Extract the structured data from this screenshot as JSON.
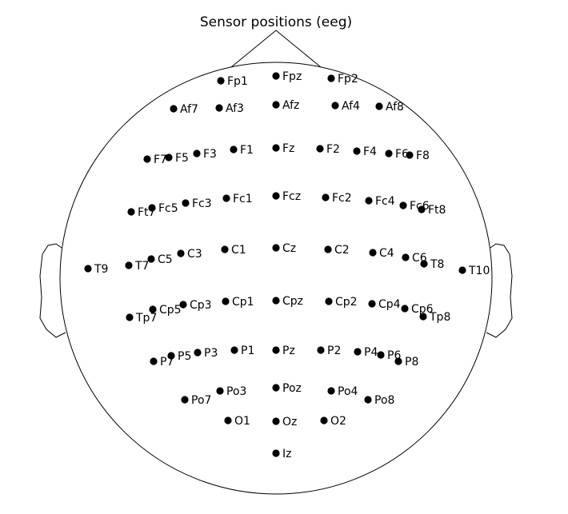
{
  "title": "Sensor positions (eeg)",
  "colors": {
    "sensor": "#000000",
    "outline": "#000000",
    "background": "#ffffff"
  },
  "sensors": [
    "Fp1",
    "Fpz",
    "Fp2",
    "Af7",
    "Af3",
    "Afz",
    "Af4",
    "Af8",
    "F7",
    "F5",
    "F3",
    "F1",
    "Fz",
    "F2",
    "F4",
    "F6",
    "F8",
    "Ft7",
    "Fc5",
    "Fc3",
    "Fc1",
    "Fcz",
    "Fc2",
    "Fc4",
    "Fc6",
    "Ft8",
    "T9",
    "T7",
    "C5",
    "C3",
    "C1",
    "Cz",
    "C2",
    "C4",
    "C6",
    "T8",
    "T10",
    "Tp7",
    "Cp5",
    "Cp3",
    "Cp1",
    "Cpz",
    "Cp2",
    "Cp4",
    "Cp6",
    "Tp8",
    "P7",
    "P5",
    "P3",
    "P1",
    "Pz",
    "P2",
    "P4",
    "P6",
    "P8",
    "Po7",
    "Po3",
    "Poz",
    "Po4",
    "Po8",
    "O1",
    "Oz",
    "O2",
    "Iz"
  ]
}
